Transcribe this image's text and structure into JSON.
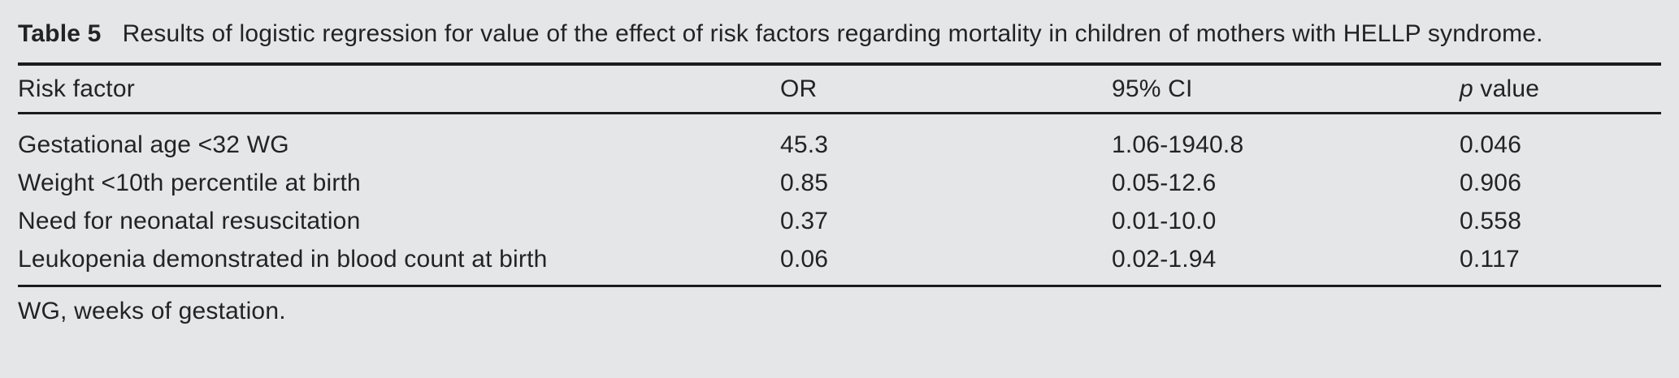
{
  "table": {
    "caption": {
      "label": "Table 5",
      "text": "Results of logistic regression for value of the effect of risk factors regarding mortality in children of mothers with HELLP syndrome."
    },
    "header": {
      "risk_factor": "Risk factor",
      "or": "OR",
      "ci": "95% CI",
      "p_italic": "p",
      "p_rest": " value"
    },
    "rows": [
      {
        "risk_factor": "Gestational age <32 WG",
        "or": "45.3",
        "ci": "1.06-1940.8",
        "p": "0.046"
      },
      {
        "risk_factor": "Weight <10th percentile at birth",
        "or": "0.85",
        "ci": "0.05-12.6",
        "p": "0.906"
      },
      {
        "risk_factor": "Need for neonatal resuscitation",
        "or": "0.37",
        "ci": "0.01-10.0",
        "p": "0.558"
      },
      {
        "risk_factor": "Leukopenia demonstrated in blood count at birth",
        "or": "0.06",
        "ci": "0.02-1.94",
        "p": "0.117"
      }
    ],
    "footnote": "WG, weeks of gestation."
  },
  "colors": {
    "panel_background": "#e5e6e8",
    "text": "#232324",
    "rule": "#1b1b1c"
  }
}
